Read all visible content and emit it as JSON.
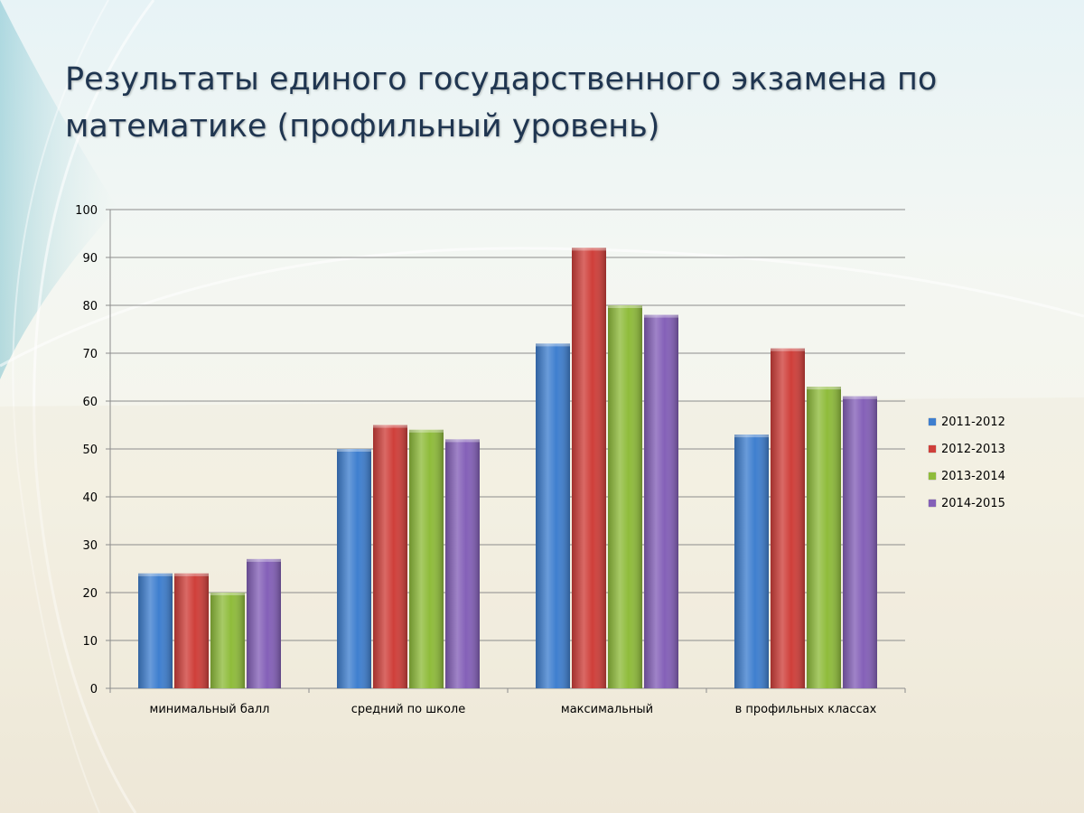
{
  "title": "Результаты единого государственного экзамена по математике (профильный уровень)",
  "chart_data": {
    "type": "bar",
    "categories": [
      "минимальный балл",
      "средний по школе",
      "максимальный",
      "в профильных классах"
    ],
    "series": [
      {
        "name": "2011-2012",
        "color": "#3f7fcf",
        "values": [
          24,
          50,
          72,
          53
        ]
      },
      {
        "name": "2012-2013",
        "color": "#cf3f3a",
        "values": [
          24,
          55,
          92,
          71
        ]
      },
      {
        "name": "2013-2014",
        "color": "#8fbc3b",
        "values": [
          20,
          54,
          80,
          63
        ]
      },
      {
        "name": "2014-2015",
        "color": "#8460b8",
        "values": [
          27,
          52,
          78,
          61
        ]
      }
    ],
    "ylim": [
      0,
      100
    ],
    "yticks": [
      "0",
      "10",
      "20",
      "30",
      "40",
      "50",
      "60",
      "70",
      "80",
      "90",
      "100"
    ],
    "grid": true,
    "legend_position": "right"
  }
}
